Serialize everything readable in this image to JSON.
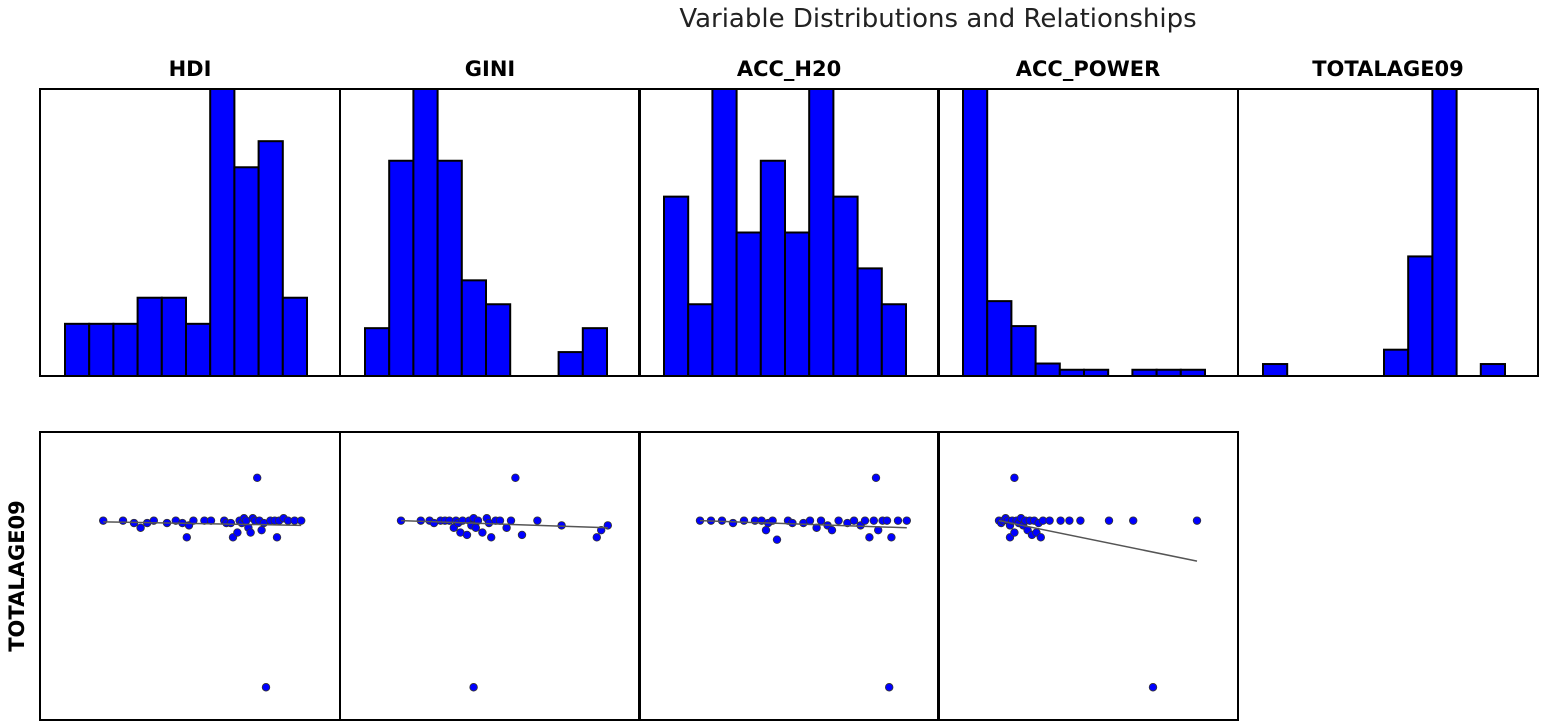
{
  "chart_data": {
    "type": "scatter",
    "title": "Variable Distributions and Relationships",
    "variables": [
      "HDI",
      "GINI",
      "ACC_H20",
      "ACC_POWER",
      "TOTALAGE09"
    ],
    "row_label": "TOTALAGE09",
    "grid": false,
    "histograms": [
      {
        "variable": "HDI",
        "counts": [
          2,
          2,
          2,
          3,
          3,
          2,
          11,
          8,
          9,
          3
        ]
      },
      {
        "variable": "GINI",
        "counts": [
          2,
          9,
          12,
          9,
          4,
          3,
          0,
          0,
          1,
          2
        ]
      },
      {
        "variable": "ACC_H20",
        "counts": [
          5,
          2,
          8,
          4,
          6,
          4,
          8,
          5,
          3,
          2
        ]
      },
      {
        "variable": "ACC_POWER",
        "counts": [
          23,
          6,
          4,
          1,
          0.5,
          0.5,
          0,
          0.5,
          0.5,
          0.5
        ]
      },
      {
        "variable": "TOTALAGE09",
        "counts": [
          1,
          0,
          0,
          0,
          0,
          2.2,
          10,
          24,
          0,
          1
        ]
      }
    ],
    "scatter_plots": [
      {
        "x_variable": "HDI",
        "y_variable": "TOTALAGE09",
        "points": [
          [
            0.06,
            0.72
          ],
          [
            0.15,
            0.72
          ],
          [
            0.2,
            0.71
          ],
          [
            0.23,
            0.69
          ],
          [
            0.26,
            0.71
          ],
          [
            0.29,
            0.72
          ],
          [
            0.35,
            0.71
          ],
          [
            0.39,
            0.72
          ],
          [
            0.42,
            0.71
          ],
          [
            0.44,
            0.65
          ],
          [
            0.45,
            0.7
          ],
          [
            0.47,
            0.72
          ],
          [
            0.52,
            0.72
          ],
          [
            0.55,
            0.72
          ],
          [
            0.61,
            0.72
          ],
          [
            0.62,
            0.71
          ],
          [
            0.64,
            0.71
          ],
          [
            0.65,
            0.65
          ],
          [
            0.67,
            0.67
          ],
          [
            0.68,
            0.72
          ],
          [
            0.69,
            0.71
          ],
          [
            0.7,
            0.73
          ],
          [
            0.71,
            0.72
          ],
          [
            0.72,
            0.69
          ],
          [
            0.73,
            0.67
          ],
          [
            0.74,
            0.73
          ],
          [
            0.75,
            0.72
          ],
          [
            0.76,
            0.9
          ],
          [
            0.77,
            0.72
          ],
          [
            0.78,
            0.68
          ],
          [
            0.79,
            0.71
          ],
          [
            0.8,
            0.02
          ],
          [
            0.82,
            0.72
          ],
          [
            0.84,
            0.72
          ],
          [
            0.85,
            0.65
          ],
          [
            0.86,
            0.72
          ],
          [
            0.88,
            0.73
          ],
          [
            0.9,
            0.72
          ],
          [
            0.93,
            0.72
          ],
          [
            0.96,
            0.72
          ]
        ],
        "trend": [
          [
            0.06,
            0.715
          ],
          [
            0.96,
            0.7
          ]
        ]
      },
      {
        "x_variable": "GINI",
        "y_variable": "TOTALAGE09",
        "points": [
          [
            0.05,
            0.72
          ],
          [
            0.14,
            0.72
          ],
          [
            0.18,
            0.72
          ],
          [
            0.2,
            0.71
          ],
          [
            0.23,
            0.72
          ],
          [
            0.25,
            0.72
          ],
          [
            0.27,
            0.72
          ],
          [
            0.29,
            0.69
          ],
          [
            0.3,
            0.72
          ],
          [
            0.31,
            0.71
          ],
          [
            0.32,
            0.67
          ],
          [
            0.33,
            0.72
          ],
          [
            0.35,
            0.66
          ],
          [
            0.36,
            0.72
          ],
          [
            0.37,
            0.7
          ],
          [
            0.38,
            0.73
          ],
          [
            0.38,
            0.02
          ],
          [
            0.39,
            0.69
          ],
          [
            0.4,
            0.72
          ],
          [
            0.42,
            0.67
          ],
          [
            0.44,
            0.73
          ],
          [
            0.45,
            0.71
          ],
          [
            0.46,
            0.65
          ],
          [
            0.48,
            0.72
          ],
          [
            0.5,
            0.72
          ],
          [
            0.53,
            0.69
          ],
          [
            0.55,
            0.72
          ],
          [
            0.57,
            0.9
          ],
          [
            0.6,
            0.66
          ],
          [
            0.67,
            0.72
          ],
          [
            0.78,
            0.7
          ],
          [
            0.94,
            0.65
          ],
          [
            0.96,
            0.68
          ],
          [
            0.99,
            0.7
          ]
        ],
        "trend": [
          [
            0.05,
            0.72
          ],
          [
            0.99,
            0.69
          ]
        ]
      },
      {
        "x_variable": "ACC_H20",
        "y_variable": "TOTALAGE09",
        "points": [
          [
            0.05,
            0.72
          ],
          [
            0.1,
            0.72
          ],
          [
            0.15,
            0.72
          ],
          [
            0.2,
            0.71
          ],
          [
            0.25,
            0.72
          ],
          [
            0.3,
            0.72
          ],
          [
            0.33,
            0.72
          ],
          [
            0.35,
            0.68
          ],
          [
            0.36,
            0.71
          ],
          [
            0.38,
            0.72
          ],
          [
            0.4,
            0.64
          ],
          [
            0.45,
            0.72
          ],
          [
            0.47,
            0.71
          ],
          [
            0.52,
            0.71
          ],
          [
            0.55,
            0.72
          ],
          [
            0.58,
            0.69
          ],
          [
            0.6,
            0.72
          ],
          [
            0.63,
            0.7
          ],
          [
            0.65,
            0.68
          ],
          [
            0.68,
            0.72
          ],
          [
            0.72,
            0.71
          ],
          [
            0.75,
            0.72
          ],
          [
            0.78,
            0.7
          ],
          [
            0.8,
            0.72
          ],
          [
            0.82,
            0.65
          ],
          [
            0.84,
            0.72
          ],
          [
            0.85,
            0.9
          ],
          [
            0.86,
            0.68
          ],
          [
            0.88,
            0.72
          ],
          [
            0.9,
            0.72
          ],
          [
            0.91,
            0.02
          ],
          [
            0.92,
            0.65
          ],
          [
            0.95,
            0.72
          ],
          [
            0.99,
            0.72
          ]
        ],
        "trend": [
          [
            0.05,
            0.72
          ],
          [
            0.99,
            0.69
          ]
        ]
      },
      {
        "x_variable": "ACC_POWER",
        "y_variable": "TOTALAGE09",
        "points": [
          [
            0.05,
            0.72
          ],
          [
            0.06,
            0.71
          ],
          [
            0.07,
            0.72
          ],
          [
            0.08,
            0.73
          ],
          [
            0.09,
            0.72
          ],
          [
            0.1,
            0.7
          ],
          [
            0.1,
            0.65
          ],
          [
            0.11,
            0.72
          ],
          [
            0.12,
            0.9
          ],
          [
            0.12,
            0.67
          ],
          [
            0.13,
            0.72
          ],
          [
            0.14,
            0.71
          ],
          [
            0.15,
            0.73
          ],
          [
            0.16,
            0.7
          ],
          [
            0.17,
            0.72
          ],
          [
            0.18,
            0.68
          ],
          [
            0.19,
            0.72
          ],
          [
            0.2,
            0.66
          ],
          [
            0.21,
            0.72
          ],
          [
            0.22,
            0.67
          ],
          [
            0.23,
            0.71
          ],
          [
            0.24,
            0.65
          ],
          [
            0.25,
            0.72
          ],
          [
            0.28,
            0.72
          ],
          [
            0.33,
            0.72
          ],
          [
            0.37,
            0.72
          ],
          [
            0.42,
            0.72
          ],
          [
            0.55,
            0.72
          ],
          [
            0.66,
            0.72
          ],
          [
            0.75,
            0.02
          ],
          [
            0.95,
            0.72
          ]
        ],
        "trend": [
          [
            0.05,
            0.72
          ],
          [
            0.95,
            0.55
          ]
        ]
      }
    ]
  }
}
